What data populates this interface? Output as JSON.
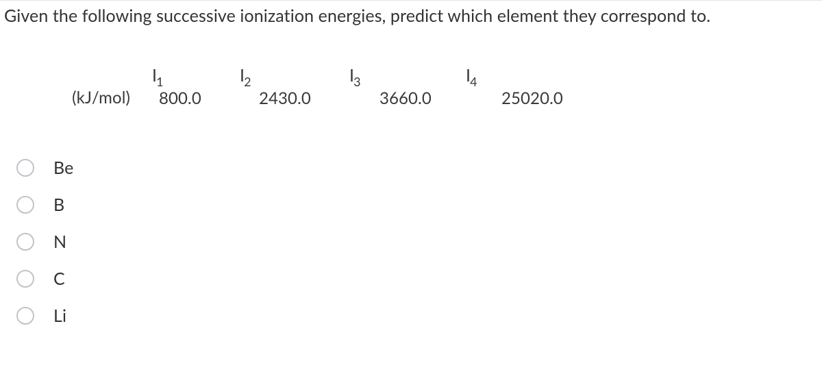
{
  "question": "Given the following successive ionization energies, predict which element they correspond to.",
  "table": {
    "row_label": "(kJ/mol)",
    "columns": [
      {
        "base": "I",
        "sub": "1",
        "value": "800.0"
      },
      {
        "base": "I",
        "sub": "2",
        "value": "2430.0"
      },
      {
        "base": "I",
        "sub": "3",
        "value": "3660.0"
      },
      {
        "base": "I",
        "sub": "4",
        "value": "25020.0"
      }
    ]
  },
  "options": [
    {
      "label": "Be"
    },
    {
      "label": "B"
    },
    {
      "label": "N"
    },
    {
      "label": "C"
    },
    {
      "label": "Li"
    }
  ],
  "colors": {
    "text": "#333333",
    "radio_border": "#c0c4c8",
    "background": "#ffffff"
  }
}
